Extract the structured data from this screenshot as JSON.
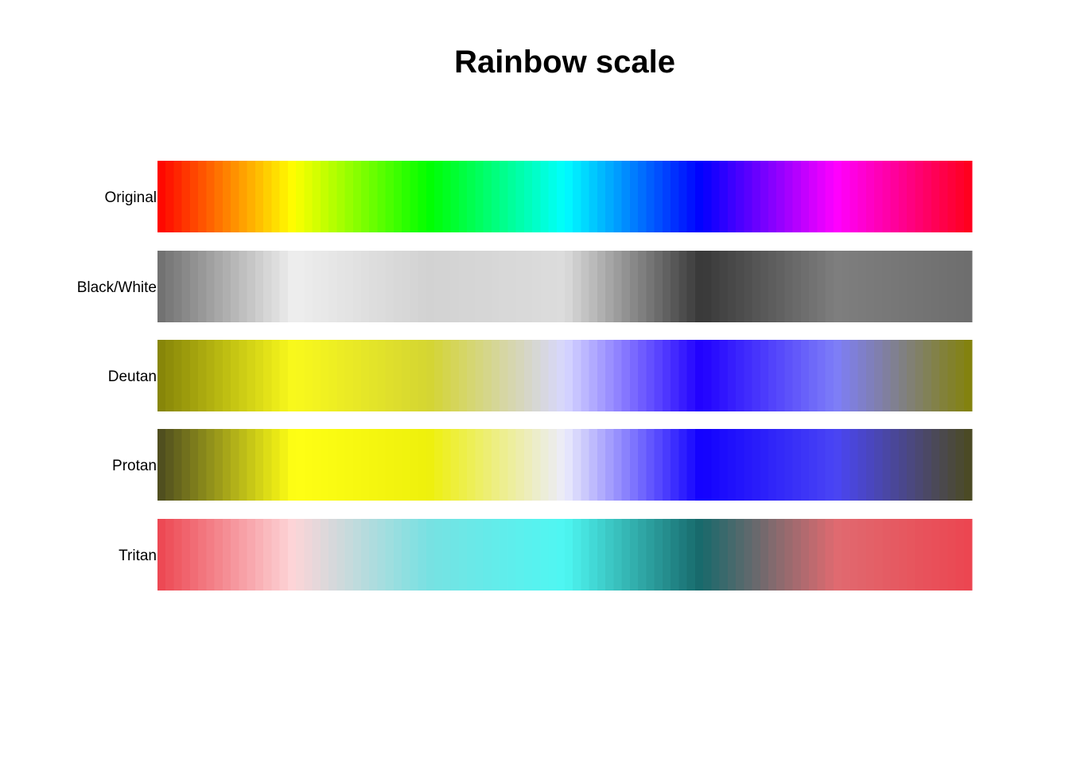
{
  "chart_data": {
    "type": "heatmap",
    "title": "Rainbow scale",
    "xlabel": "",
    "ylabel": "",
    "steps_per_row": 100,
    "rows": [
      {
        "label": "Original",
        "stops": [
          "#ff0000",
          "#ffff00",
          "#00ff00",
          "#00ffff",
          "#0000ff",
          "#ff00ff",
          "#ff0018"
        ],
        "stop_positions": [
          0,
          0.1667,
          0.3333,
          0.5,
          0.6667,
          0.8333,
          1
        ]
      },
      {
        "label": "Black/White",
        "stops": [
          "#6e6e6e",
          "#eeeeee",
          "#d2d2d2",
          "#dcdcdc",
          "#383838",
          "#7e7e7e",
          "#6e6e6e"
        ],
        "stop_positions": [
          0,
          0.1667,
          0.3333,
          0.5,
          0.6667,
          0.8333,
          1
        ]
      },
      {
        "label": "Deutan",
        "stops": [
          "#838208",
          "#f9f91c",
          "#d4d532",
          "#d7d7ff",
          "#2000ff",
          "#7e7ef8",
          "#838208"
        ],
        "stop_positions": [
          0,
          0.1667,
          0.3333,
          0.5,
          0.6667,
          0.8333,
          1
        ]
      },
      {
        "label": "Protan",
        "stops": [
          "#4b4a1f",
          "#ffff14",
          "#eef00c",
          "#ececfc",
          "#1200ff",
          "#4a45f4",
          "#4b4a1f"
        ],
        "stop_positions": [
          0,
          0.1667,
          0.3333,
          0.5,
          0.6667,
          0.8333,
          1
        ]
      },
      {
        "label": "Tritan",
        "stops": [
          "#ec4550",
          "#fdd5d8",
          "#77e1e2",
          "#4ef7f2",
          "#17696b",
          "#e06a70",
          "#ec4550"
        ],
        "stop_positions": [
          0,
          0.1667,
          0.3333,
          0.5,
          0.6667,
          0.8333,
          1
        ]
      }
    ]
  }
}
